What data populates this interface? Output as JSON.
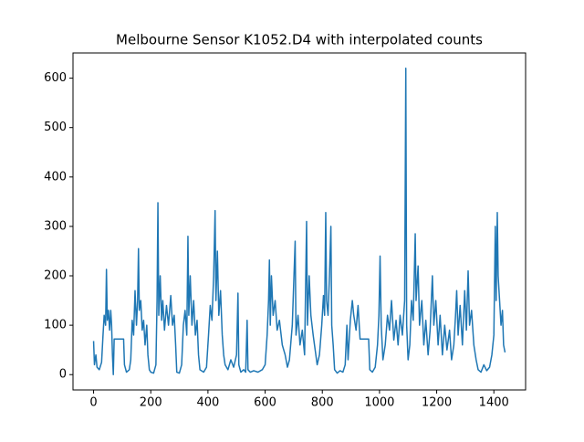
{
  "chart_data": {
    "type": "line",
    "title": "Melbourne Sensor K1052.D4 with interpolated counts",
    "color": "#1f77b4",
    "xlim": [
      -72,
      1511
    ],
    "ylim": [
      -31,
      651
    ],
    "xticks": [
      0,
      200,
      400,
      600,
      800,
      1000,
      1200,
      1400
    ],
    "yticks": [
      0,
      100,
      200,
      300,
      400,
      500,
      600
    ],
    "x": [
      0,
      3,
      8,
      12,
      20,
      28,
      33,
      37,
      42,
      45,
      48,
      52,
      56,
      60,
      63,
      66,
      69,
      72,
      105,
      108,
      115,
      125,
      130,
      135,
      140,
      145,
      150,
      154,
      157,
      160,
      165,
      170,
      175,
      180,
      186,
      190,
      195,
      200,
      210,
      218,
      222,
      225,
      228,
      233,
      238,
      242,
      248,
      255,
      262,
      270,
      276,
      282,
      287,
      291,
      300,
      308,
      314,
      320,
      326,
      330,
      333,
      338,
      344,
      350,
      356,
      362,
      367,
      372,
      385,
      395,
      402,
      408,
      414,
      420,
      425,
      428,
      433,
      438,
      444,
      450,
      455,
      460,
      470,
      480,
      490,
      500,
      505,
      508,
      515,
      525,
      532,
      537,
      540,
      548,
      560,
      575,
      590,
      600,
      607,
      612,
      615,
      618,
      622,
      628,
      635,
      642,
      650,
      660,
      670,
      678,
      685,
      695,
      705,
      708,
      715,
      722,
      730,
      738,
      745,
      748,
      754,
      760,
      768,
      775,
      782,
      790,
      798,
      804,
      808,
      812,
      815,
      820,
      825,
      830,
      833,
      838,
      843,
      852,
      862,
      872,
      880,
      886,
      890,
      898,
      905,
      910,
      918,
      925,
      932,
      962,
      966,
      975,
      985,
      993,
      998,
      1002,
      1006,
      1012,
      1020,
      1028,
      1035,
      1042,
      1050,
      1058,
      1065,
      1072,
      1080,
      1088,
      1092,
      1095,
      1100,
      1106,
      1112,
      1118,
      1125,
      1128,
      1135,
      1140,
      1148,
      1155,
      1162,
      1170,
      1177,
      1185,
      1190,
      1197,
      1205,
      1212,
      1220,
      1228,
      1236,
      1245,
      1252,
      1260,
      1266,
      1270,
      1275,
      1282,
      1290,
      1298,
      1304,
      1310,
      1315,
      1322,
      1330,
      1338,
      1345,
      1355,
      1365,
      1375,
      1385,
      1393,
      1400,
      1405,
      1408,
      1412,
      1415,
      1420,
      1425,
      1430,
      1434,
      1439
    ],
    "values": [
      68,
      20,
      40,
      15,
      10,
      25,
      80,
      120,
      100,
      213,
      110,
      130,
      90,
      130,
      100,
      40,
      0,
      72,
      72,
      20,
      5,
      10,
      30,
      110,
      80,
      170,
      100,
      150,
      255,
      130,
      150,
      90,
      110,
      60,
      100,
      40,
      10,
      5,
      3,
      20,
      150,
      348,
      120,
      200,
      110,
      150,
      90,
      140,
      100,
      160,
      100,
      120,
      60,
      5,
      3,
      20,
      100,
      130,
      80,
      280,
      120,
      200,
      100,
      150,
      80,
      110,
      40,
      10,
      5,
      15,
      80,
      140,
      110,
      200,
      332,
      150,
      250,
      120,
      170,
      80,
      40,
      20,
      10,
      30,
      15,
      40,
      165,
      20,
      5,
      10,
      5,
      110,
      10,
      5,
      8,
      5,
      10,
      20,
      80,
      150,
      232,
      100,
      200,
      120,
      150,
      90,
      110,
      60,
      40,
      15,
      30,
      100,
      270,
      80,
      120,
      60,
      90,
      40,
      310,
      100,
      200,
      120,
      80,
      50,
      20,
      40,
      100,
      160,
      120,
      328,
      150,
      120,
      200,
      300,
      100,
      60,
      10,
      3,
      8,
      5,
      20,
      100,
      30,
      110,
      150,
      120,
      90,
      140,
      72,
      72,
      10,
      5,
      15,
      60,
      120,
      240,
      100,
      30,
      60,
      120,
      90,
      150,
      70,
      110,
      60,
      120,
      80,
      150,
      620,
      100,
      30,
      60,
      150,
      110,
      285,
      150,
      220,
      100,
      150,
      60,
      110,
      40,
      90,
      200,
      100,
      150,
      60,
      120,
      40,
      100,
      50,
      90,
      30,
      60,
      120,
      170,
      80,
      140,
      60,
      170,
      90,
      210,
      100,
      130,
      60,
      30,
      10,
      5,
      20,
      8,
      15,
      40,
      80,
      300,
      150,
      328,
      200,
      150,
      100,
      130,
      60,
      45
    ]
  }
}
